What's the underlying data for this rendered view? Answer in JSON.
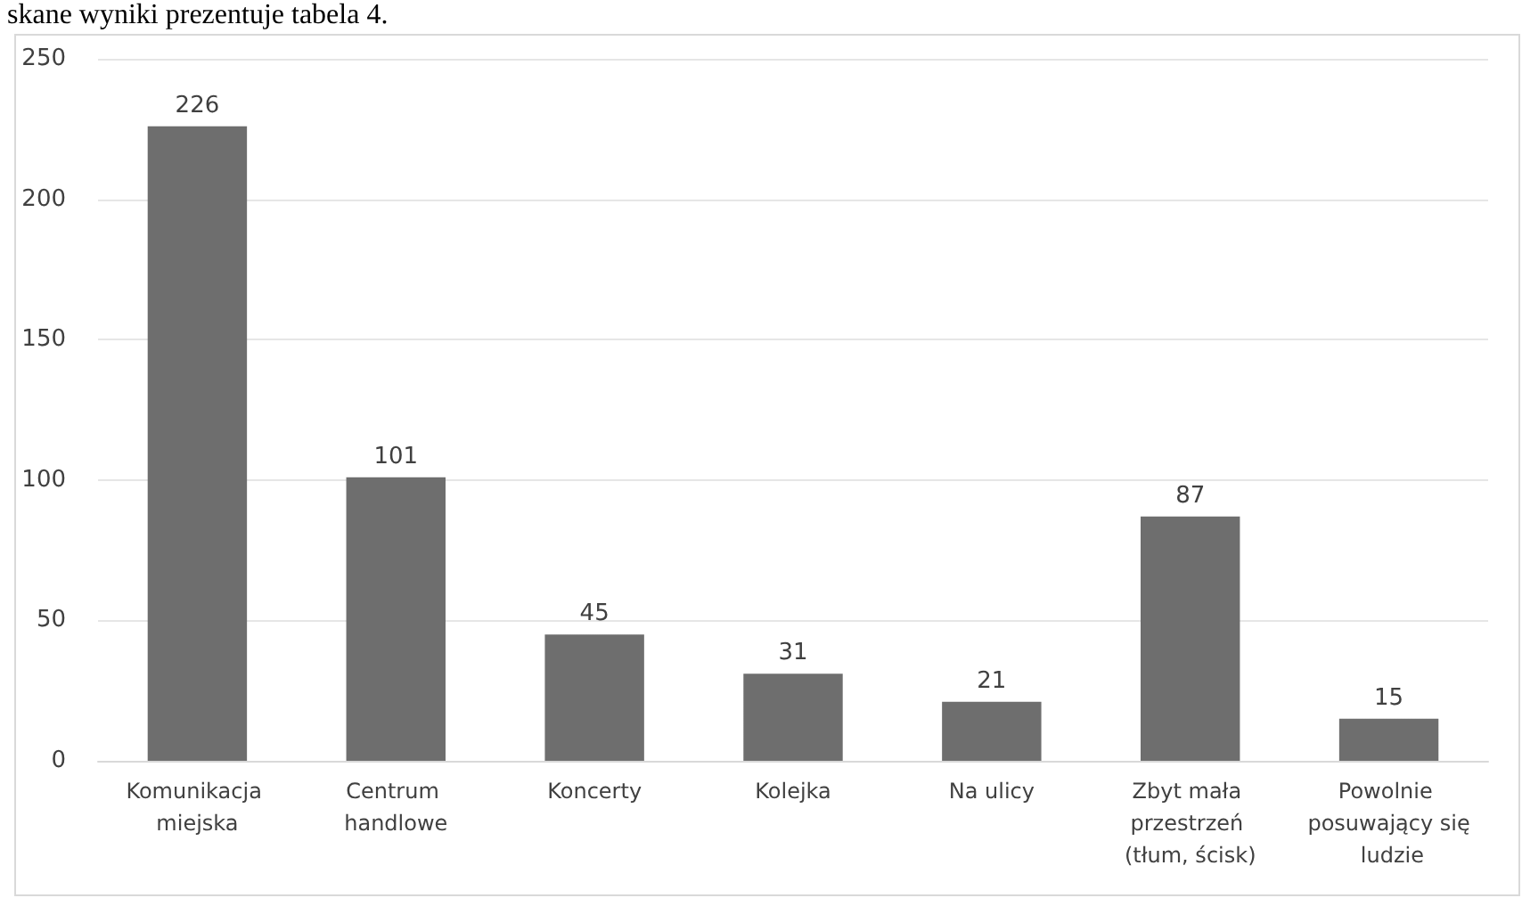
{
  "chart_data": {
    "type": "bar",
    "annotations": [
      "skane wyniki prezentuje tabela 4."
    ],
    "categories": [
      "Komunikacja miejska",
      "Centrum handlowe",
      "Koncerty",
      "Kolejka",
      "Na ulicy",
      "Zbyt mała przestrzeń (tłum, ścisk)",
      "Powolnie posuwający się ludzie"
    ],
    "values": [
      226,
      101,
      45,
      31,
      21,
      87,
      15
    ],
    "color": "#6e6e6e",
    "ylim": [
      0,
      250
    ],
    "yticks": [
      0,
      50,
      100,
      150,
      200,
      250
    ],
    "grid": "y",
    "data_labels": true
  }
}
